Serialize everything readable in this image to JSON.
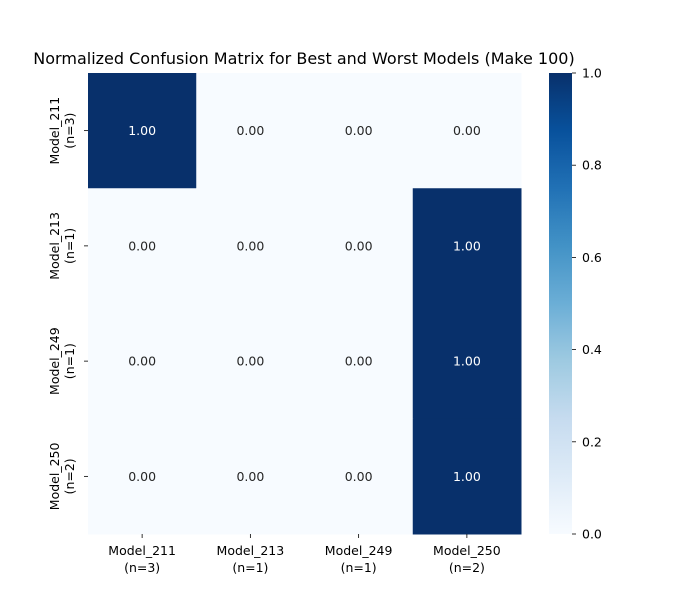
{
  "chart_data": {
    "type": "heatmap",
    "title": "Normalized Confusion Matrix for Best and Worst Models (Make 100)",
    "xlabel": "",
    "ylabel": "",
    "x_categories": [
      {
        "name": "Model_211",
        "count": "(n=3)"
      },
      {
        "name": "Model_213",
        "count": "(n=1)"
      },
      {
        "name": "Model_249",
        "count": "(n=1)"
      },
      {
        "name": "Model_250",
        "count": "(n=2)"
      }
    ],
    "y_categories": [
      {
        "name": "Model_211",
        "count": "(n=3)"
      },
      {
        "name": "Model_213",
        "count": "(n=1)"
      },
      {
        "name": "Model_249",
        "count": "(n=1)"
      },
      {
        "name": "Model_250",
        "count": "(n=2)"
      }
    ],
    "values": [
      [
        1.0,
        0.0,
        0.0,
        0.0
      ],
      [
        0.0,
        0.0,
        0.0,
        1.0
      ],
      [
        0.0,
        0.0,
        0.0,
        1.0
      ],
      [
        0.0,
        0.0,
        0.0,
        1.0
      ]
    ],
    "value_format_decimals": 2,
    "colormap": "Blues",
    "color_low": "#f7fbff",
    "color_high": "#08306b",
    "colorbar": {
      "min": 0.0,
      "max": 1.0,
      "ticks": [
        "0.0",
        "0.2",
        "0.4",
        "0.6",
        "0.8",
        "1.0"
      ]
    }
  }
}
